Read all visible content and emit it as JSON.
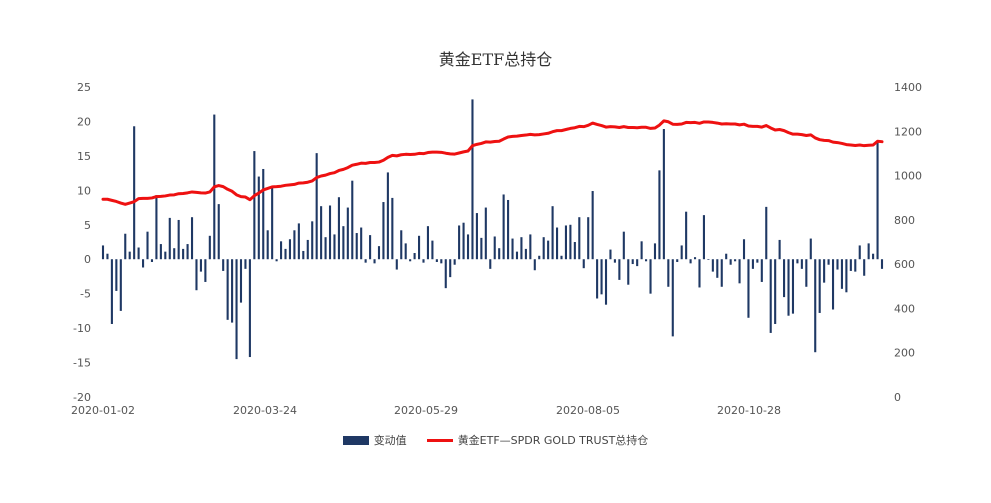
{
  "chart_data": {
    "type": "bar+line",
    "title": "黄金ETF总持仓",
    "x_tick_labels": [
      "2020-01-02",
      "2020-03-24",
      "2020-05-29",
      "2020-08-05",
      "2020-10-28"
    ],
    "y_left": {
      "ylim": [
        -20,
        25
      ],
      "ticks": [
        "25",
        "20",
        "15",
        "10",
        "5",
        "0",
        "-5",
        "-10",
        "-15",
        "-20"
      ]
    },
    "y_right": {
      "ylim": [
        0,
        1400
      ],
      "ticks": [
        "1400",
        "1200",
        "1000",
        "800",
        "600",
        "400",
        "200",
        "0"
      ]
    },
    "legend_position": "bottom-center",
    "series": [
      {
        "name": "变动值",
        "type": "bar",
        "axis": "left",
        "color": "#1f3864",
        "values": [
          2.0,
          0.8,
          -9.4,
          -4.6,
          -7.5,
          3.7,
          1.1,
          19.3,
          1.7,
          -1.2,
          4.0,
          -0.4,
          9.3,
          2.2,
          1.1,
          6.0,
          1.6,
          5.7,
          1.5,
          2.2,
          6.1,
          -4.5,
          -1.8,
          -3.3,
          3.4,
          21.0,
          8.0,
          -1.7,
          -8.8,
          -9.2,
          -14.5,
          -6.3,
          -1.4,
          -14.2,
          15.7,
          12.0,
          13.1,
          4.2,
          10.5,
          -0.3,
          2.6,
          1.5,
          2.9,
          4.2,
          5.2,
          1.2,
          2.8,
          5.5,
          15.4,
          7.7,
          3.2,
          7.8,
          3.6,
          9.0,
          4.8,
          7.5,
          11.4,
          3.8,
          4.6,
          -0.5,
          3.5,
          -0.6,
          1.9,
          8.3,
          12.6,
          8.9,
          -1.5,
          4.2,
          2.3,
          -0.3,
          0.9,
          3.4,
          -0.5,
          4.8,
          2.7,
          -0.4,
          -0.6,
          -4.2,
          -2.6,
          -0.8,
          4.9,
          5.3,
          3.6,
          23.2,
          6.7,
          3.1,
          7.5,
          -1.4,
          3.3,
          1.6,
          9.4,
          8.6,
          3.0,
          1.1,
          3.2,
          1.5,
          3.6,
          -1.6,
          0.5,
          3.2,
          2.7,
          7.7,
          4.6,
          0.5,
          4.9,
          5.0,
          2.5,
          6.1,
          -1.3,
          6.1,
          9.9,
          -5.7,
          -5.1,
          -6.6,
          1.4,
          -0.5,
          -3.0,
          4.0,
          -3.7,
          -0.7,
          -1.0,
          2.6,
          -0.3,
          -5.0,
          2.3,
          12.9,
          18.9,
          -4.0,
          -11.2,
          -0.4,
          2.0,
          6.9,
          -0.6,
          0.3,
          -4.1,
          6.4,
          -0.1,
          -1.8,
          -2.7,
          -4.0,
          0.8,
          -0.8,
          -0.3,
          -3.5,
          2.9,
          -8.5,
          -1.4,
          -0.5,
          -3.3,
          7.6,
          -10.7,
          -9.4,
          2.8,
          -5.5,
          -8.2,
          -7.9,
          -0.6,
          -1.4,
          -4.0,
          3.0,
          -13.5,
          -7.8,
          -3.4,
          -0.8,
          -7.3,
          -1.5,
          -4.3,
          -4.8,
          -1.7,
          -1.8,
          2.0,
          -2.4,
          2.3,
          0.8,
          17.1,
          -1.4
        ]
      },
      {
        "name": "黄金ETF—SPDR GOLD TRUST总持仓",
        "type": "line",
        "axis": "right",
        "color": "#ee1111",
        "values": [
          893,
          893,
          888,
          883,
          876,
          870,
          876,
          882,
          896,
          897,
          897,
          899,
          905,
          906,
          908,
          912,
          913,
          918,
          919,
          922,
          926,
          924,
          922,
          921,
          926,
          949,
          955,
          950,
          938,
          929,
          913,
          905,
          903,
          891,
          909,
          921,
          935,
          942,
          949,
          950,
          952,
          956,
          958,
          960,
          966,
          967,
          970,
          976,
          991,
          998,
          1002,
          1009,
          1013,
          1023,
          1028,
          1036,
          1047,
          1051,
          1056,
          1055,
          1059,
          1059,
          1061,
          1069,
          1082,
          1091,
          1089,
          1094,
          1096,
          1095,
          1096,
          1100,
          1099,
          1104,
          1106,
          1106,
          1105,
          1101,
          1098,
          1097,
          1102,
          1107,
          1111,
          1135,
          1141,
          1145,
          1152,
          1151,
          1154,
          1155,
          1165,
          1174,
          1177,
          1178,
          1181,
          1183,
          1186,
          1184,
          1185,
          1188,
          1191,
          1198,
          1203,
          1203,
          1208,
          1213,
          1216,
          1222,
          1221,
          1227,
          1237,
          1231,
          1226,
          1219,
          1221,
          1220,
          1217,
          1221,
          1217,
          1217,
          1216,
          1218,
          1218,
          1213,
          1215,
          1228,
          1247,
          1243,
          1232,
          1231,
          1233,
          1240,
          1239,
          1240,
          1236,
          1242,
          1242,
          1240,
          1237,
          1233,
          1234,
          1233,
          1233,
          1229,
          1232,
          1224,
          1222,
          1222,
          1219,
          1226,
          1215,
          1206,
          1208,
          1203,
          1194,
          1187,
          1187,
          1185,
          1181,
          1184,
          1170,
          1162,
          1159,
          1158,
          1151,
          1149,
          1145,
          1140,
          1138,
          1136,
          1138,
          1135,
          1137,
          1138,
          1155,
          1153
        ]
      }
    ]
  }
}
